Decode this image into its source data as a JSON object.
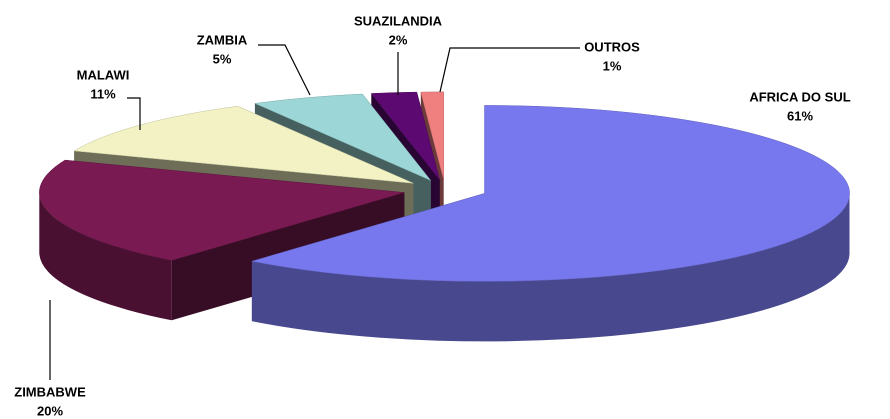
{
  "chart_data": {
    "type": "pie",
    "categories": [
      "AFRICA DO SUL",
      "ZIMBABWE",
      "MALAWI",
      "ZAMBIA",
      "SUAZILANDIA",
      "OUTROS"
    ],
    "values": [
      61,
      20,
      11,
      5,
      2,
      1
    ],
    "value_labels": [
      "61%",
      "20%",
      "11%",
      "5%",
      "2%",
      "1%"
    ],
    "colors": [
      "#7878ee",
      "#7a1a52",
      "#f2f2c4",
      "#9cd6d6",
      "#5c0a72",
      "#f08080"
    ]
  }
}
